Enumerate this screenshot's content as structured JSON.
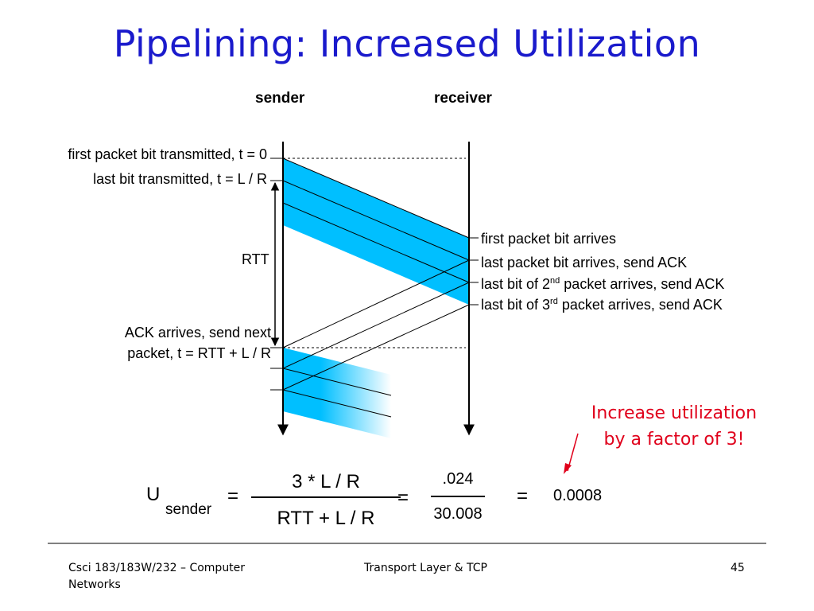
{
  "title": "Pipelining: Increased Utilization",
  "diagram": {
    "sender_label": "sender",
    "receiver_label": "receiver",
    "left_labels": {
      "first_tx": "first packet bit transmitted, t = 0",
      "last_tx": "last bit transmitted, t = L / R",
      "rtt": "RTT",
      "ack_line1": "ACK arrives, send next",
      "ack_line2": "packet, t = RTT + L / R"
    },
    "right_labels": {
      "first_arrives": "first packet bit arrives",
      "last_arrives": "last packet bit arrives, send ACK",
      "second_pre": "last bit of 2",
      "second_sup": "nd",
      "second_post": " packet arrives, send ACK",
      "third_pre": "last bit of 3",
      "third_sup": "rd",
      "third_post": " packet arrives, send ACK"
    },
    "colors": {
      "packet": "#00bfff",
      "line": "#000000",
      "callout": "#e0001b",
      "title": "#1a1acc"
    }
  },
  "callout": {
    "line1": "Increase utilization",
    "line2": "by a factor of 3!"
  },
  "equation": {
    "U": "U",
    "subscript": "sender",
    "eq1": "=",
    "numerator": "3 * L / R",
    "denominator": "RTT + L / R",
    "eq2": "=",
    "num2": ".024",
    "den2": "30.008",
    "eq3": "=",
    "result": "0.0008"
  },
  "footer": {
    "course_line1": "Csci 183/183W/232 – Computer",
    "course_line2": "Networks",
    "topic": "Transport Layer &  TCP",
    "page": "45"
  }
}
